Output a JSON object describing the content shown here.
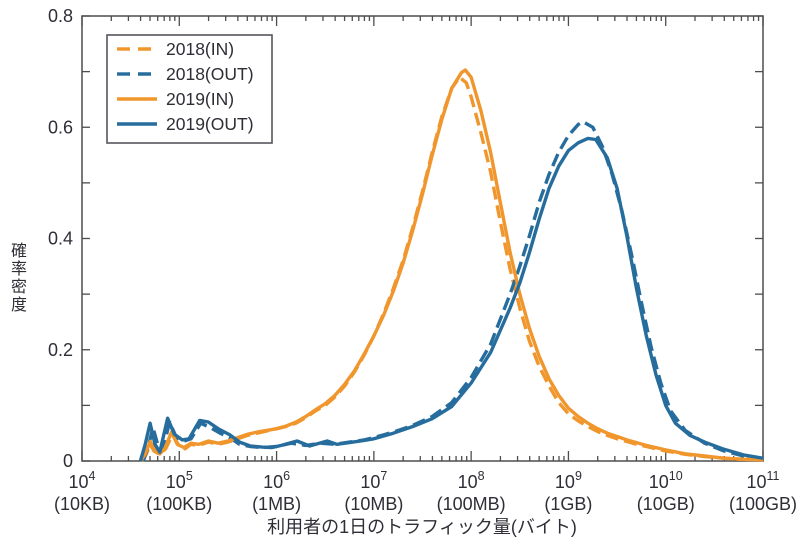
{
  "figure": {
    "x_axis_title": "利用者の1日のトラフィック量(バイト)",
    "y_axis_title": "確率密度"
  },
  "colors": {
    "orange": "#F0962D",
    "blue": "#266D9D",
    "frame": "#4D4D4D",
    "text": "#2E2E36"
  },
  "chart_data": {
    "type": "line",
    "x_scale": "log10",
    "x_range_log10": [
      4,
      11
    ],
    "ylim": [
      0,
      0.8
    ],
    "grid": false,
    "legend_position": "top-left",
    "x_ticks": [
      {
        "exponent": "4",
        "bytes": "(10KB)"
      },
      {
        "exponent": "5",
        "bytes": "(100KB)"
      },
      {
        "exponent": "6",
        "bytes": "(1MB)"
      },
      {
        "exponent": "7",
        "bytes": "(10MB)"
      },
      {
        "exponent": "8",
        "bytes": "(100MB)"
      },
      {
        "exponent": "9",
        "bytes": "(1GB)"
      },
      {
        "exponent": "10",
        "bytes": "(10GB)"
      },
      {
        "exponent": "11",
        "bytes": "(100GB)"
      }
    ],
    "y_ticks": [
      {
        "value": 0,
        "label": "0"
      },
      {
        "value": 0.2,
        "label": "0.2"
      },
      {
        "value": 0.4,
        "label": "0.4"
      },
      {
        "value": 0.6,
        "label": "0.6"
      },
      {
        "value": 0.8,
        "label": "0.8"
      }
    ],
    "y_minor_step": 0.1,
    "series": [
      {
        "name": "2018(IN)",
        "color": "#F0962D",
        "style": "dashed",
        "points": [
          [
            4.62,
            0
          ],
          [
            4.66,
            0.012
          ],
          [
            4.7,
            0.03
          ],
          [
            4.74,
            0.018
          ],
          [
            4.8,
            0.012
          ],
          [
            4.86,
            0.022
          ],
          [
            4.93,
            0.048
          ],
          [
            5.0,
            0.026
          ],
          [
            5.06,
            0.022
          ],
          [
            5.12,
            0.03
          ],
          [
            5.2,
            0.028
          ],
          [
            5.3,
            0.034
          ],
          [
            5.4,
            0.03
          ],
          [
            5.5,
            0.034
          ],
          [
            5.6,
            0.04
          ],
          [
            5.7,
            0.046
          ],
          [
            5.8,
            0.05
          ],
          [
            5.9,
            0.054
          ],
          [
            6.0,
            0.058
          ],
          [
            6.1,
            0.062
          ],
          [
            6.2,
            0.068
          ],
          [
            6.3,
            0.078
          ],
          [
            6.4,
            0.09
          ],
          [
            6.5,
            0.1
          ],
          [
            6.6,
            0.115
          ],
          [
            6.7,
            0.135
          ],
          [
            6.8,
            0.16
          ],
          [
            6.9,
            0.19
          ],
          [
            7.0,
            0.225
          ],
          [
            7.1,
            0.265
          ],
          [
            7.2,
            0.31
          ],
          [
            7.3,
            0.36
          ],
          [
            7.4,
            0.42
          ],
          [
            7.5,
            0.485
          ],
          [
            7.6,
            0.555
          ],
          [
            7.7,
            0.62
          ],
          [
            7.8,
            0.67
          ],
          [
            7.88,
            0.69
          ],
          [
            7.95,
            0.68
          ],
          [
            8.0,
            0.655
          ],
          [
            8.1,
            0.59
          ],
          [
            8.2,
            0.52
          ],
          [
            8.3,
            0.43
          ],
          [
            8.4,
            0.345
          ],
          [
            8.5,
            0.275
          ],
          [
            8.6,
            0.215
          ],
          [
            8.7,
            0.17
          ],
          [
            8.8,
            0.135
          ],
          [
            8.9,
            0.105
          ],
          [
            9.0,
            0.085
          ],
          [
            9.1,
            0.072
          ],
          [
            9.2,
            0.062
          ],
          [
            9.3,
            0.053
          ],
          [
            9.4,
            0.046
          ],
          [
            9.5,
            0.04
          ],
          [
            9.6,
            0.035
          ],
          [
            9.7,
            0.03
          ],
          [
            9.8,
            0.026
          ],
          [
            9.9,
            0.022
          ],
          [
            10.0,
            0.018
          ],
          [
            10.2,
            0.012
          ],
          [
            10.4,
            0.008
          ],
          [
            10.6,
            0.005
          ],
          [
            10.8,
            0.003
          ],
          [
            11.0,
            0.002
          ]
        ]
      },
      {
        "name": "2018(OUT)",
        "color": "#266D9D",
        "style": "dashed",
        "points": [
          [
            4.63,
            0
          ],
          [
            4.68,
            0.025
          ],
          [
            4.73,
            0.06
          ],
          [
            4.78,
            0.028
          ],
          [
            4.83,
            0.02
          ],
          [
            4.9,
            0.07
          ],
          [
            4.97,
            0.042
          ],
          [
            5.05,
            0.036
          ],
          [
            5.12,
            0.04
          ],
          [
            5.22,
            0.068
          ],
          [
            5.32,
            0.06
          ],
          [
            5.42,
            0.05
          ],
          [
            5.52,
            0.042
          ],
          [
            5.62,
            0.03
          ],
          [
            5.73,
            0.026
          ],
          [
            5.85,
            0.024
          ],
          [
            6.0,
            0.026
          ],
          [
            6.15,
            0.032
          ],
          [
            6.3,
            0.028
          ],
          [
            6.45,
            0.032
          ],
          [
            6.6,
            0.03
          ],
          [
            6.75,
            0.034
          ],
          [
            6.9,
            0.038
          ],
          [
            7.0,
            0.042
          ],
          [
            7.2,
            0.052
          ],
          [
            7.4,
            0.064
          ],
          [
            7.6,
            0.08
          ],
          [
            7.8,
            0.105
          ],
          [
            8.0,
            0.15
          ],
          [
            8.2,
            0.21
          ],
          [
            8.4,
            0.3
          ],
          [
            8.5,
            0.35
          ],
          [
            8.6,
            0.405
          ],
          [
            8.7,
            0.465
          ],
          [
            8.8,
            0.515
          ],
          [
            8.9,
            0.555
          ],
          [
            9.0,
            0.585
          ],
          [
            9.1,
            0.605
          ],
          [
            9.15,
            0.61
          ],
          [
            9.25,
            0.6
          ],
          [
            9.35,
            0.565
          ],
          [
            9.45,
            0.515
          ],
          [
            9.55,
            0.45
          ],
          [
            9.65,
            0.37
          ],
          [
            9.75,
            0.285
          ],
          [
            9.85,
            0.205
          ],
          [
            9.95,
            0.14
          ],
          [
            10.05,
            0.09
          ],
          [
            10.2,
            0.055
          ],
          [
            10.4,
            0.032
          ],
          [
            10.6,
            0.018
          ],
          [
            10.8,
            0.009
          ],
          [
            11.0,
            0.004
          ]
        ]
      },
      {
        "name": "2019(IN)",
        "color": "#F0962D",
        "style": "solid",
        "points": [
          [
            4.6,
            0
          ],
          [
            4.65,
            0.012
          ],
          [
            4.7,
            0.035
          ],
          [
            4.75,
            0.02
          ],
          [
            4.8,
            0.013
          ],
          [
            4.85,
            0.022
          ],
          [
            4.92,
            0.052
          ],
          [
            4.98,
            0.03
          ],
          [
            5.05,
            0.024
          ],
          [
            5.12,
            0.032
          ],
          [
            5.2,
            0.03
          ],
          [
            5.3,
            0.036
          ],
          [
            5.4,
            0.032
          ],
          [
            5.5,
            0.036
          ],
          [
            5.6,
            0.042
          ],
          [
            5.7,
            0.048
          ],
          [
            5.8,
            0.052
          ],
          [
            5.9,
            0.055
          ],
          [
            6.0,
            0.058
          ],
          [
            6.1,
            0.063
          ],
          [
            6.2,
            0.07
          ],
          [
            6.3,
            0.08
          ],
          [
            6.4,
            0.092
          ],
          [
            6.5,
            0.103
          ],
          [
            6.6,
            0.118
          ],
          [
            6.7,
            0.138
          ],
          [
            6.8,
            0.162
          ],
          [
            6.9,
            0.192
          ],
          [
            7.0,
            0.225
          ],
          [
            7.1,
            0.262
          ],
          [
            7.2,
            0.305
          ],
          [
            7.3,
            0.355
          ],
          [
            7.4,
            0.415
          ],
          [
            7.5,
            0.48
          ],
          [
            7.6,
            0.55
          ],
          [
            7.7,
            0.615
          ],
          [
            7.8,
            0.67
          ],
          [
            7.9,
            0.698
          ],
          [
            7.94,
            0.703
          ],
          [
            8.0,
            0.69
          ],
          [
            8.1,
            0.63
          ],
          [
            8.2,
            0.555
          ],
          [
            8.3,
            0.465
          ],
          [
            8.4,
            0.375
          ],
          [
            8.5,
            0.3
          ],
          [
            8.6,
            0.238
          ],
          [
            8.7,
            0.188
          ],
          [
            8.8,
            0.148
          ],
          [
            8.9,
            0.118
          ],
          [
            9.0,
            0.095
          ],
          [
            9.1,
            0.08
          ],
          [
            9.2,
            0.068
          ],
          [
            9.3,
            0.058
          ],
          [
            9.4,
            0.05
          ],
          [
            9.5,
            0.044
          ],
          [
            9.6,
            0.038
          ],
          [
            9.7,
            0.033
          ],
          [
            9.8,
            0.028
          ],
          [
            9.9,
            0.024
          ],
          [
            10.0,
            0.02
          ],
          [
            10.2,
            0.013
          ],
          [
            10.4,
            0.009
          ],
          [
            10.6,
            0.005
          ],
          [
            10.8,
            0.003
          ],
          [
            11.0,
            0.002
          ]
        ]
      },
      {
        "name": "2019(OUT)",
        "color": "#266D9D",
        "style": "solid",
        "points": [
          [
            4.6,
            0
          ],
          [
            4.65,
            0.03
          ],
          [
            4.7,
            0.068
          ],
          [
            4.75,
            0.03
          ],
          [
            4.8,
            0.016
          ],
          [
            4.88,
            0.077
          ],
          [
            4.95,
            0.048
          ],
          [
            5.03,
            0.038
          ],
          [
            5.1,
            0.04
          ],
          [
            5.21,
            0.073
          ],
          [
            5.3,
            0.07
          ],
          [
            5.4,
            0.058
          ],
          [
            5.52,
            0.047
          ],
          [
            5.62,
            0.034
          ],
          [
            5.73,
            0.027
          ],
          [
            5.85,
            0.025
          ],
          [
            5.95,
            0.024
          ],
          [
            6.05,
            0.028
          ],
          [
            6.21,
            0.036
          ],
          [
            6.34,
            0.027
          ],
          [
            6.52,
            0.036
          ],
          [
            6.62,
            0.03
          ],
          [
            6.75,
            0.033
          ],
          [
            6.9,
            0.037
          ],
          [
            7.0,
            0.04
          ],
          [
            7.2,
            0.05
          ],
          [
            7.4,
            0.062
          ],
          [
            7.6,
            0.076
          ],
          [
            7.8,
            0.098
          ],
          [
            8.0,
            0.14
          ],
          [
            8.2,
            0.195
          ],
          [
            8.4,
            0.275
          ],
          [
            8.5,
            0.32
          ],
          [
            8.6,
            0.375
          ],
          [
            8.7,
            0.435
          ],
          [
            8.8,
            0.49
          ],
          [
            8.9,
            0.53
          ],
          [
            9.0,
            0.558
          ],
          [
            9.1,
            0.572
          ],
          [
            9.2,
            0.58
          ],
          [
            9.28,
            0.578
          ],
          [
            9.4,
            0.545
          ],
          [
            9.5,
            0.49
          ],
          [
            9.6,
            0.405
          ],
          [
            9.7,
            0.31
          ],
          [
            9.8,
            0.225
          ],
          [
            9.9,
            0.155
          ],
          [
            10.0,
            0.1
          ],
          [
            10.1,
            0.068
          ],
          [
            10.25,
            0.046
          ],
          [
            10.4,
            0.034
          ],
          [
            10.6,
            0.021
          ],
          [
            10.8,
            0.011
          ],
          [
            11.0,
            0.005
          ]
        ]
      }
    ]
  }
}
